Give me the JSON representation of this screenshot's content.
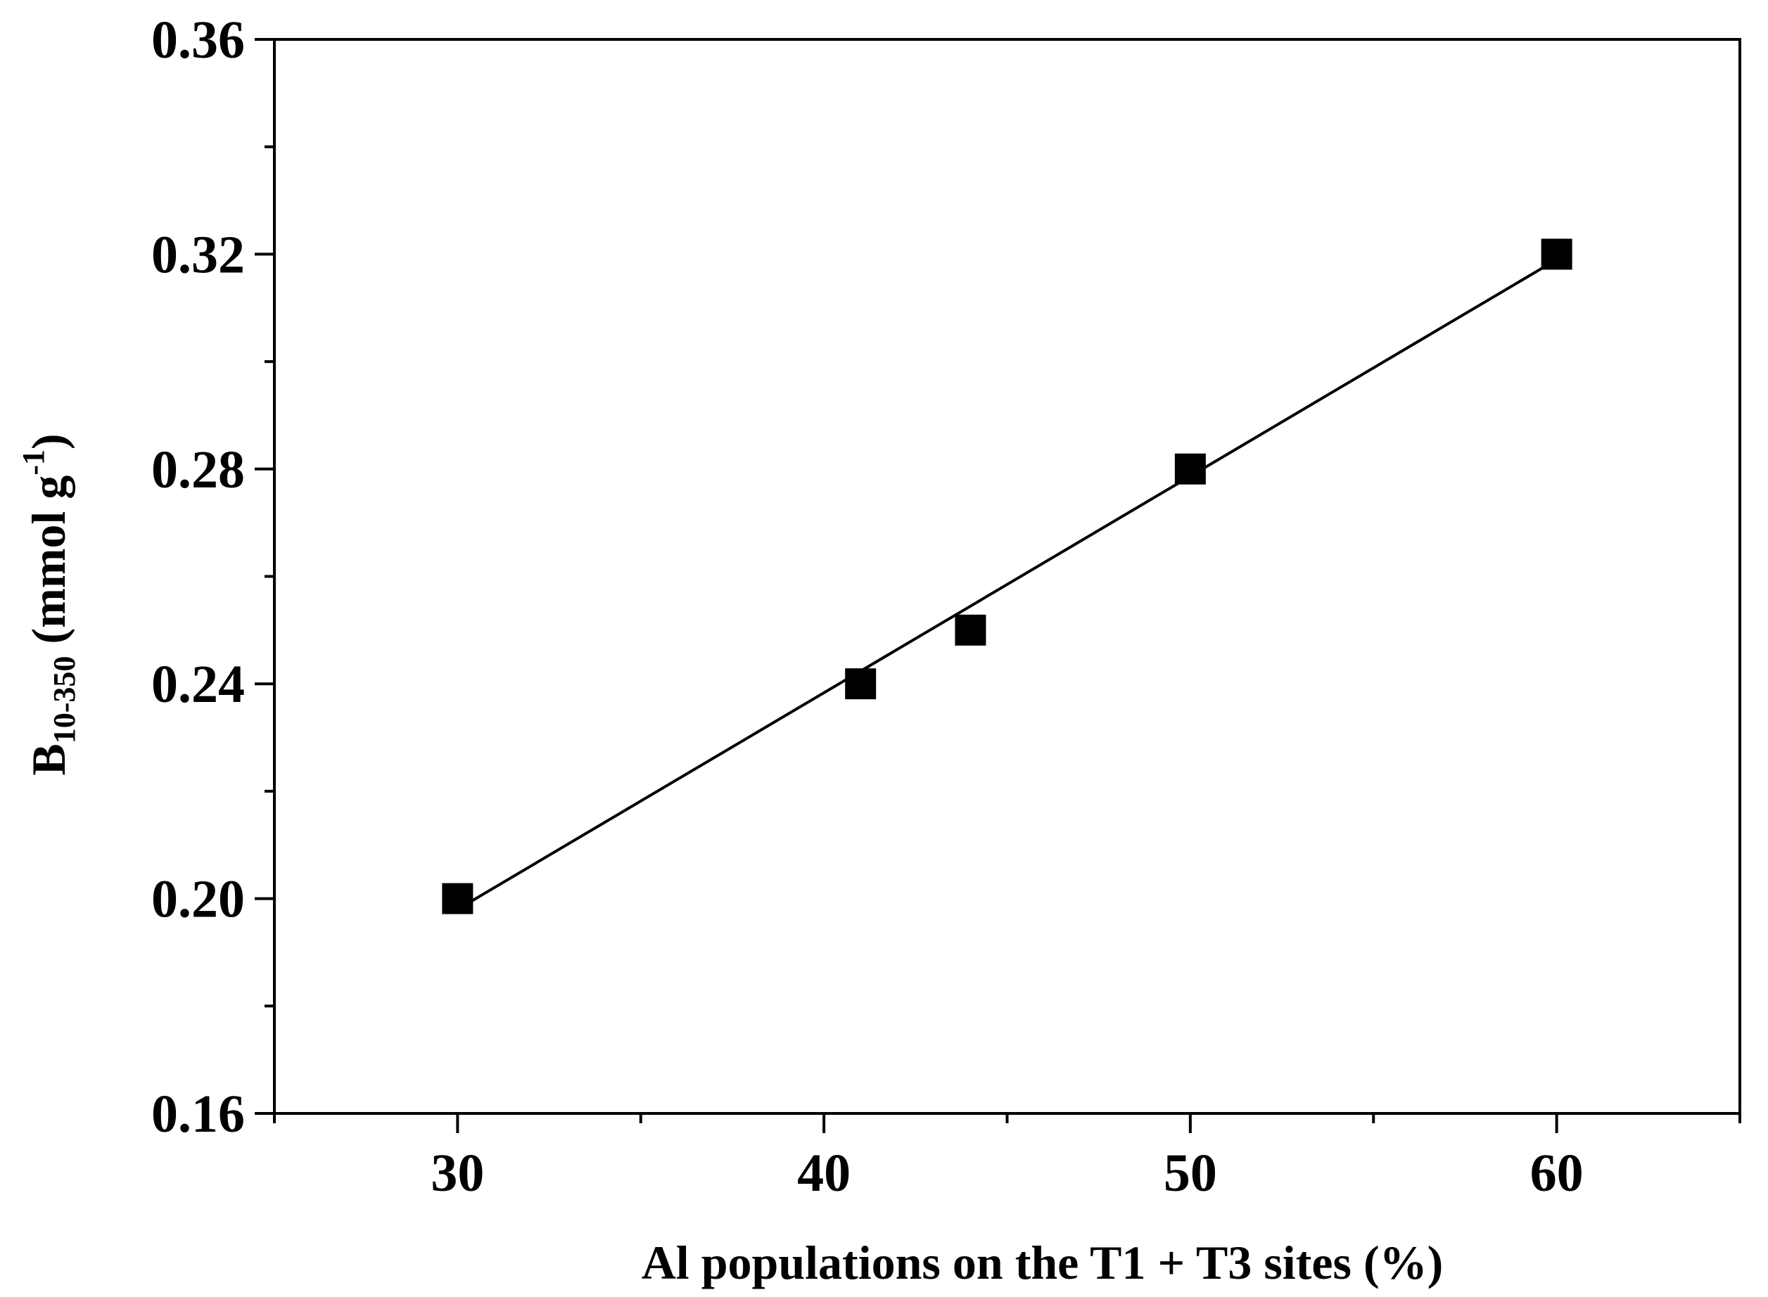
{
  "chart_data": {
    "type": "scatter",
    "title": "",
    "xlabel": "Al populations on the T1 + T3 sites (%)",
    "ylabel": {
      "main": "B",
      "subscript": "10-350",
      "unit_open": " (mmol g",
      "superscript": "-1",
      "unit_close": ")"
    },
    "xlim": [
      25,
      65
    ],
    "ylim": [
      0.16,
      0.36
    ],
    "x_ticks": [
      30,
      40,
      50,
      60
    ],
    "x_tick_labels": [
      "30",
      "40",
      "50",
      "60"
    ],
    "x_minor_ticks": [
      25,
      35,
      45,
      55,
      65
    ],
    "y_ticks": [
      0.16,
      0.2,
      0.24,
      0.28,
      0.32,
      0.36
    ],
    "y_tick_labels": [
      "0.16",
      "0.20",
      "0.24",
      "0.28",
      "0.32",
      "0.36"
    ],
    "y_minor_ticks": [
      0.18,
      0.22,
      0.26,
      0.3,
      0.34
    ],
    "grid": false,
    "series": [
      {
        "marker": "square",
        "color": "#000000",
        "x": [
          30,
          41,
          44,
          50,
          60
        ],
        "y": [
          0.2,
          0.24,
          0.25,
          0.28,
          0.32
        ]
      }
    ],
    "fit_line": {
      "color": "#000000",
      "x": [
        30,
        60
      ],
      "y": [
        0.198,
        0.319
      ]
    }
  }
}
